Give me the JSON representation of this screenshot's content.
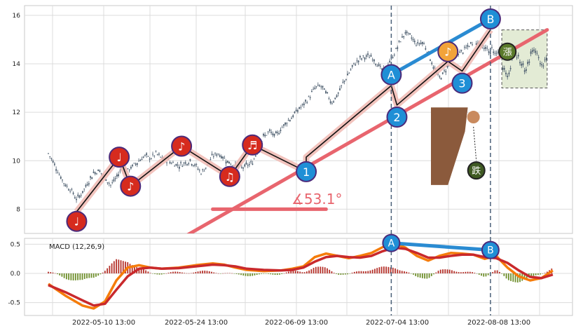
{
  "chart_data": [
    {
      "type": "candlestick",
      "panel": "price",
      "ylim": [
        7.0,
        16.4
      ],
      "yticks": [
        8,
        10,
        12,
        14,
        16
      ],
      "x_tick_labels": [
        "2022-05-10 13:00",
        "2022-05-24 13:00",
        "2022-06-09 13:00",
        "2022-07-04 13:00",
        "2022-08-08 13:00"
      ],
      "grid": true,
      "candle_colors": {
        "up": "#4c5d6e",
        "down": "#4c5d6e"
      },
      "price_path": [
        [
          0,
          10.3
        ],
        [
          2,
          9.9
        ],
        [
          4,
          9.4
        ],
        [
          6,
          9.0
        ],
        [
          8,
          8.8
        ],
        [
          10,
          8.4
        ],
        [
          12,
          8.7
        ],
        [
          14,
          9.1
        ],
        [
          16,
          9.5
        ],
        [
          18,
          9.6
        ],
        [
          20,
          9.3
        ],
        [
          22,
          9.0
        ],
        [
          24,
          9.3
        ],
        [
          26,
          9.7
        ],
        [
          28,
          9.6
        ],
        [
          30,
          9.8
        ],
        [
          32,
          10.0
        ],
        [
          34,
          10.2
        ],
        [
          36,
          10.1
        ],
        [
          38,
          10.3
        ],
        [
          40,
          10.1
        ],
        [
          42,
          10.0
        ],
        [
          44,
          9.9
        ],
        [
          46,
          9.8
        ],
        [
          48,
          9.9
        ],
        [
          50,
          10.0
        ],
        [
          52,
          9.8
        ],
        [
          54,
          9.5
        ],
        [
          56,
          9.8
        ],
        [
          58,
          10.2
        ],
        [
          60,
          10.3
        ],
        [
          62,
          10.1
        ],
        [
          64,
          9.9
        ],
        [
          66,
          9.8
        ],
        [
          68,
          9.7
        ],
        [
          70,
          9.8
        ],
        [
          72,
          9.9
        ],
        [
          74,
          10.5
        ],
        [
          76,
          11.0
        ],
        [
          78,
          11.2
        ],
        [
          80,
          11.0
        ],
        [
          82,
          11.3
        ],
        [
          84,
          11.6
        ],
        [
          86,
          11.8
        ],
        [
          88,
          12.1
        ],
        [
          90,
          12.3
        ],
        [
          92,
          12.6
        ],
        [
          94,
          13.0
        ],
        [
          96,
          13.1
        ],
        [
          98,
          12.8
        ],
        [
          100,
          12.4
        ],
        [
          102,
          12.7
        ],
        [
          104,
          13.2
        ],
        [
          106,
          13.6
        ],
        [
          108,
          14.0
        ],
        [
          110,
          14.2
        ],
        [
          112,
          14.3
        ],
        [
          114,
          14.3
        ],
        [
          116,
          14.0
        ],
        [
          118,
          13.7
        ],
        [
          120,
          14.0
        ],
        [
          122,
          14.4
        ],
        [
          124,
          14.9
        ],
        [
          126,
          15.3
        ],
        [
          128,
          15.1
        ],
        [
          130,
          14.8
        ],
        [
          132,
          14.9
        ],
        [
          134,
          14.5
        ],
        [
          136,
          13.8
        ],
        [
          138,
          13.4
        ],
        [
          140,
          13.7
        ],
        [
          142,
          14.2
        ],
        [
          144,
          14.4
        ],
        [
          146,
          14.5
        ],
        [
          148,
          14.7
        ],
        [
          150,
          14.9
        ]
      ],
      "wave_markers": [
        {
          "label": "♩",
          "x": 10,
          "y": 7.5,
          "color": "#d62b1e"
        },
        {
          "label": "♩",
          "x": 25,
          "y": 10.15,
          "color": "#d62b1e"
        },
        {
          "label": "♪",
          "x": 29,
          "y": 8.95,
          "color": "#d62b1e"
        },
        {
          "label": "♪",
          "x": 47,
          "y": 10.6,
          "color": "#d62b1e"
        },
        {
          "label": "♫",
          "x": 64,
          "y": 9.35,
          "color": "#d62b1e"
        },
        {
          "label": "♬",
          "x": 72,
          "y": 10.65,
          "color": "#d62b1e"
        },
        {
          "label": "1",
          "x": 91,
          "y": 9.55,
          "color": "#1f8fd6"
        },
        {
          "label": "A",
          "x": 121,
          "y": 13.55,
          "color": "#1f8fd6"
        },
        {
          "label": "2",
          "x": 123,
          "y": 11.8,
          "color": "#1f8fd6"
        },
        {
          "label": "♪",
          "x": 141,
          "y": 14.5,
          "color": "#f2a33a"
        },
        {
          "label": "3",
          "x": 146,
          "y": 13.2,
          "color": "#1f8fd6"
        },
        {
          "label": "B",
          "x": 156,
          "y": 15.85,
          "color": "#1f8fd6"
        }
      ],
      "trendline": {
        "from": [
          38,
          6.2
        ],
        "to": [
          176,
          15.4
        ]
      },
      "angle_label": "∡53.1°",
      "signal_icons": [
        "漲",
        "跌"
      ]
    },
    {
      "type": "line_bar",
      "panel": "macd",
      "label": "MACD (12,26,9)",
      "ylim": [
        -0.72,
        0.6
      ],
      "yticks": [
        -0.5,
        0.0,
        0.5
      ],
      "series": [
        {
          "values": [
            [
              0,
              -0.18
            ],
            [
              6,
              -0.38
            ],
            [
              12,
              -0.55
            ],
            [
              16,
              -0.6
            ],
            [
              20,
              -0.48
            ],
            [
              24,
              -0.12
            ],
            [
              28,
              0.1
            ],
            [
              32,
              0.14
            ],
            [
              36,
              0.1
            ],
            [
              40,
              0.08
            ],
            [
              46,
              0.1
            ],
            [
              52,
              0.14
            ],
            [
              58,
              0.17
            ],
            [
              62,
              0.15
            ],
            [
              66,
              0.1
            ],
            [
              70,
              0.06
            ],
            [
              76,
              0.04
            ],
            [
              82,
              0.05
            ],
            [
              86,
              0.08
            ],
            [
              90,
              0.12
            ],
            [
              94,
              0.28
            ],
            [
              98,
              0.34
            ],
            [
              102,
              0.3
            ],
            [
              106,
              0.26
            ],
            [
              110,
              0.3
            ],
            [
              114,
              0.35
            ],
            [
              118,
              0.45
            ],
            [
              122,
              0.52
            ],
            [
              126,
              0.44
            ],
            [
              130,
              0.3
            ],
            [
              134,
              0.22
            ],
            [
              138,
              0.3
            ],
            [
              142,
              0.35
            ],
            [
              146,
              0.34
            ],
            [
              150,
              0.32
            ],
            [
              154,
              0.25
            ],
            [
              158,
              0.3
            ],
            [
              162,
              0.1
            ],
            [
              166,
              -0.05
            ],
            [
              170,
              -0.12
            ],
            [
              174,
              -0.08
            ],
            [
              178,
              0.05
            ]
          ],
          "color": "#f57c0a"
        },
        {
          "values": [
            [
              0,
              -0.2
            ],
            [
              6,
              -0.32
            ],
            [
              12,
              -0.46
            ],
            [
              16,
              -0.55
            ],
            [
              20,
              -0.52
            ],
            [
              24,
              -0.28
            ],
            [
              28,
              -0.05
            ],
            [
              32,
              0.08
            ],
            [
              36,
              0.1
            ],
            [
              40,
              0.08
            ],
            [
              46,
              0.09
            ],
            [
              52,
              0.12
            ],
            [
              58,
              0.15
            ],
            [
              62,
              0.14
            ],
            [
              66,
              0.12
            ],
            [
              70,
              0.08
            ],
            [
              76,
              0.06
            ],
            [
              82,
              0.05
            ],
            [
              86,
              0.06
            ],
            [
              90,
              0.1
            ],
            [
              94,
              0.2
            ],
            [
              98,
              0.28
            ],
            [
              102,
              0.3
            ],
            [
              106,
              0.28
            ],
            [
              110,
              0.27
            ],
            [
              114,
              0.3
            ],
            [
              118,
              0.38
            ],
            [
              122,
              0.44
            ],
            [
              126,
              0.42
            ],
            [
              130,
              0.35
            ],
            [
              134,
              0.27
            ],
            [
              138,
              0.27
            ],
            [
              142,
              0.3
            ],
            [
              146,
              0.32
            ],
            [
              150,
              0.32
            ],
            [
              154,
              0.28
            ],
            [
              158,
              0.26
            ],
            [
              162,
              0.18
            ],
            [
              166,
              0.05
            ],
            [
              170,
              -0.06
            ],
            [
              174,
              -0.08
            ],
            [
              178,
              -0.02
            ]
          ],
          "color": "#c9292c"
        }
      ],
      "histogram_colors": {
        "positive": "#b5322b",
        "negative": "#6f8f2c"
      },
      "divergence_markers": [
        {
          "label": "A",
          "x": 121,
          "y": 0.52
        },
        {
          "label": "B",
          "x": 156,
          "y": 0.4
        }
      ]
    }
  ],
  "colors": {
    "pink_wave": "#f0b9b2",
    "channel_fill": "#e3ebd5",
    "trendline": "#e8656e",
    "ab_line": "#2a8bd2",
    "grid": "#dcdcdc",
    "frame": "#c8c8c8"
  }
}
